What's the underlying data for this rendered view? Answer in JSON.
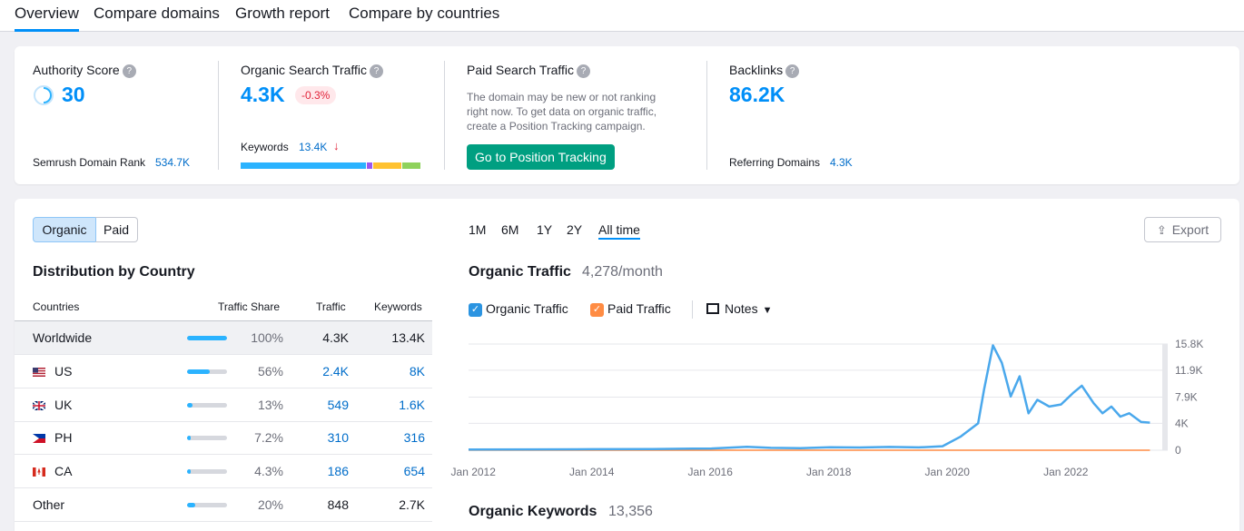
{
  "tabs": [
    "Overview",
    "Compare domains",
    "Growth report",
    "Compare by countries"
  ],
  "summary": {
    "authority": {
      "label": "Authority Score",
      "value": "30",
      "rank_label": "Semrush Domain Rank",
      "rank_value": "534.7K"
    },
    "organic": {
      "label": "Organic Search Traffic",
      "value": "4.3K",
      "change": "-0.3%",
      "keywords_label": "Keywords",
      "keywords_value": "13.4K",
      "keywords_arrow": "↓",
      "segments": [
        {
          "color": "#2bb3ff",
          "fraction": 0.7
        },
        {
          "color": "#9b57ef",
          "fraction": 0.03
        },
        {
          "color": "#ffc230",
          "fraction": 0.16
        },
        {
          "color": "#8fd25c",
          "fraction": 0.1
        }
      ]
    },
    "paid": {
      "label": "Paid Search Traffic",
      "description": "The domain may be new or not ranking right now. To get data on organic traffic, create a Position Tracking campaign.",
      "button": "Go to Position Tracking"
    },
    "backlinks": {
      "label": "Backlinks",
      "value": "86.2K",
      "ref_label": "Referring Domains",
      "ref_value": "4.3K"
    }
  },
  "toggle": {
    "organic": "Organic",
    "paid": "Paid"
  },
  "periods": [
    "1M",
    "6M",
    "1Y",
    "2Y",
    "All time"
  ],
  "export_label": "Export",
  "distribution": {
    "title": "Distribution by Country",
    "headers": {
      "countries": "Countries",
      "share": "Traffic Share",
      "traffic": "Traffic",
      "keywords": "Keywords"
    },
    "rows": [
      {
        "name": "Worldwide",
        "flag": "",
        "share": "100%",
        "share_frac": 1.0,
        "traffic": "4.3K",
        "keywords": "13.4K",
        "link": false
      },
      {
        "name": "US",
        "flag": "us",
        "share": "56%",
        "share_frac": 0.56,
        "traffic": "2.4K",
        "keywords": "8K",
        "link": true
      },
      {
        "name": "UK",
        "flag": "uk",
        "share": "13%",
        "share_frac": 0.13,
        "traffic": "549",
        "keywords": "1.6K",
        "link": true
      },
      {
        "name": "PH",
        "flag": "ph",
        "share": "7.2%",
        "share_frac": 0.072,
        "traffic": "310",
        "keywords": "316",
        "link": true
      },
      {
        "name": "CA",
        "flag": "ca",
        "share": "4.3%",
        "share_frac": 0.043,
        "traffic": "186",
        "keywords": "654",
        "link": true
      },
      {
        "name": "Other",
        "flag": "",
        "share": "20%",
        "share_frac": 0.2,
        "traffic": "848",
        "keywords": "2.7K",
        "link": false
      }
    ]
  },
  "organic_traffic": {
    "title": "Organic Traffic",
    "value": "4,278/month"
  },
  "legend": {
    "organic": "Organic Traffic",
    "paid": "Paid Traffic",
    "notes": "Notes"
  },
  "organic_keywords": {
    "title": "Organic Keywords",
    "value": "13,356"
  },
  "chart_data": {
    "type": "line",
    "y_ticks": [
      "15.8K",
      "11.9K",
      "7.9K",
      "4K",
      "0"
    ],
    "x_ticks": [
      "Jan 2012",
      "Jan 2014",
      "Jan 2016",
      "Jan 2018",
      "Jan 2020",
      "Jan 2022"
    ],
    "xlim": [
      2011.9,
      2023.7
    ],
    "ylim": [
      0,
      15800
    ],
    "series": [
      {
        "name": "Organic Traffic",
        "color": "#4aa8ec",
        "points": [
          [
            2011.9,
            100
          ],
          [
            2013,
            120
          ],
          [
            2014,
            150
          ],
          [
            2015,
            180
          ],
          [
            2016,
            250
          ],
          [
            2016.6,
            500
          ],
          [
            2017,
            350
          ],
          [
            2017.5,
            300
          ],
          [
            2018,
            450
          ],
          [
            2018.5,
            400
          ],
          [
            2019,
            480
          ],
          [
            2019.5,
            420
          ],
          [
            2019.9,
            600
          ],
          [
            2020.2,
            2000
          ],
          [
            2020.5,
            4000
          ],
          [
            2020.6,
            9000
          ],
          [
            2020.75,
            15600
          ],
          [
            2020.9,
            13000
          ],
          [
            2021.05,
            8000
          ],
          [
            2021.2,
            11000
          ],
          [
            2021.35,
            5500
          ],
          [
            2021.5,
            7500
          ],
          [
            2021.7,
            6500
          ],
          [
            2021.9,
            6800
          ],
          [
            2022.1,
            8500
          ],
          [
            2022.25,
            9600
          ],
          [
            2022.45,
            7000
          ],
          [
            2022.6,
            5500
          ],
          [
            2022.75,
            6500
          ],
          [
            2022.9,
            5000
          ],
          [
            2023.05,
            5500
          ],
          [
            2023.25,
            4200
          ],
          [
            2023.4,
            4100
          ]
        ]
      },
      {
        "name": "Paid Traffic",
        "color": "#ff8c43",
        "points": [
          [
            2011.9,
            0
          ],
          [
            2023.4,
            0
          ]
        ]
      }
    ]
  }
}
